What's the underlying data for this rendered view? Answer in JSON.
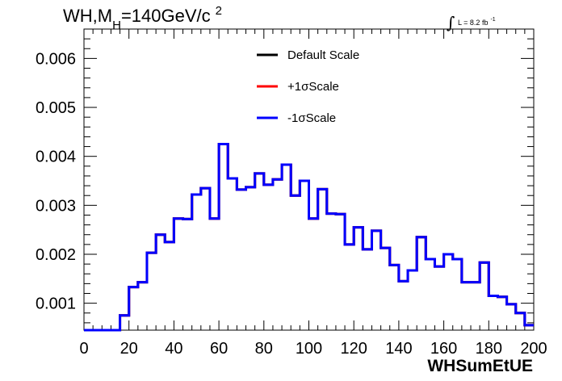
{
  "chart_data": {
    "type": "line",
    "title": {
      "main": "WH,M",
      "sub": "H",
      "rest": "=140GeV/c",
      "sup": "2"
    },
    "lumi": {
      "integral": "∫",
      "text": "L = 8.2 fb",
      "sup": "-1"
    },
    "xlabel": "WHSumEtUE",
    "ylabel": "",
    "xlim": [
      0,
      200
    ],
    "ylim": [
      0.00045,
      0.0066
    ],
    "x_ticks": [
      0,
      20,
      40,
      60,
      80,
      100,
      120,
      140,
      160,
      180,
      200
    ],
    "x_tick_labels": [
      "0",
      "20",
      "40",
      "60",
      "80",
      "100",
      "120",
      "140",
      "160",
      "180",
      "200"
    ],
    "y_ticks": [
      0.001,
      0.002,
      0.003,
      0.004,
      0.005,
      0.006
    ],
    "y_tick_labels": [
      "0.001",
      "0.002",
      "0.003",
      "0.004",
      "0.005",
      "0.006"
    ],
    "legend_position": "top-center",
    "series": [
      {
        "name": "Default Scale",
        "color": "#000000"
      },
      {
        "name": "+1σScale",
        "color": "#ff0000"
      },
      {
        "name": "-1σScale",
        "color": "#0000ff"
      }
    ],
    "bin_width": 4,
    "bin_edges_start": 0,
    "values": [
      0.00045,
      0.00045,
      0.00045,
      0.00045,
      0.00075,
      0.00133,
      0.00143,
      0.00203,
      0.0024,
      0.00225,
      0.00273,
      0.00272,
      0.00322,
      0.00335,
      0.00273,
      0.00425,
      0.00355,
      0.00332,
      0.00337,
      0.00365,
      0.00342,
      0.00353,
      0.00383,
      0.0032,
      0.0035,
      0.00273,
      0.00333,
      0.00283,
      0.00282,
      0.0022,
      0.00255,
      0.0021,
      0.00248,
      0.00213,
      0.00178,
      0.00145,
      0.00167,
      0.00235,
      0.0019,
      0.00175,
      0.002,
      0.0019,
      0.00143,
      0.00143,
      0.00183,
      0.00115,
      0.00113,
      0.00098,
      0.0008,
      0.00055
    ]
  }
}
